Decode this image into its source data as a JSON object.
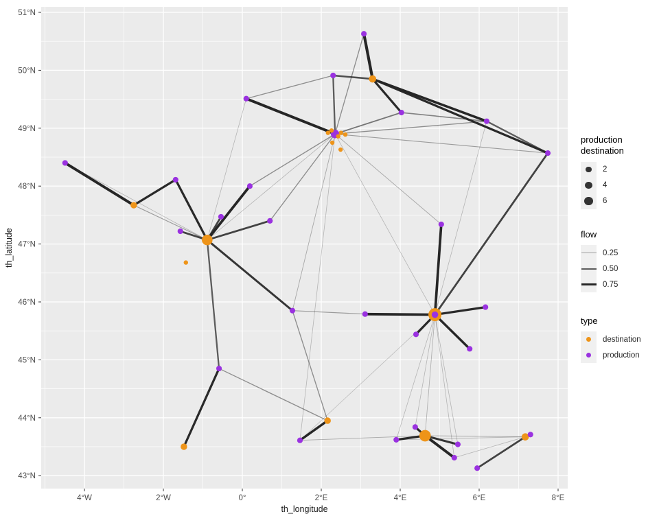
{
  "figure": {
    "x_axis": {
      "title": "th_longitude",
      "ticks": [
        {
          "label": "4°W",
          "lon": -4
        },
        {
          "label": "2°W",
          "lon": -2
        },
        {
          "label": "0°",
          "lon": 0
        },
        {
          "label": "2°E",
          "lon": 2
        },
        {
          "label": "4°E",
          "lon": 4
        },
        {
          "label": "6°E",
          "lon": 6
        },
        {
          "label": "8°E",
          "lon": 8
        }
      ]
    },
    "y_axis": {
      "title": "th_latitude",
      "ticks": [
        {
          "label": "51°N",
          "lat": 51
        },
        {
          "label": "50°N",
          "lat": 50
        },
        {
          "label": "49°N",
          "lat": 49
        },
        {
          "label": "48°N",
          "lat": 48
        },
        {
          "label": "47°N",
          "lat": 47
        },
        {
          "label": "46°N",
          "lat": 46
        },
        {
          "label": "45°N",
          "lat": 45
        },
        {
          "label": "44°N",
          "lat": 44
        },
        {
          "label": "43°N",
          "lat": 43
        }
      ]
    },
    "legend": {
      "size": {
        "title": "production\ndestination",
        "entries": [
          {
            "label": "2",
            "value": 2
          },
          {
            "label": "4",
            "value": 4
          },
          {
            "label": "6",
            "value": 6
          }
        ]
      },
      "flow": {
        "title": "flow",
        "entries": [
          {
            "label": "0.25",
            "value": 0.25
          },
          {
            "label": "0.50",
            "value": 0.5
          },
          {
            "label": "0.75",
            "value": 0.75
          }
        ]
      },
      "type": {
        "title": "type",
        "entries": [
          {
            "label": "destination",
            "color": "#EE9419"
          },
          {
            "label": "production",
            "color": "#9A32E0"
          }
        ]
      }
    },
    "colors": {
      "panel_bg": "#EBEBEB",
      "grid": "#FFFFFF",
      "edge": "#262626",
      "destination": "#EE9419",
      "production": "#9A32E0",
      "axis_text": "#4D4D4D",
      "legend_key_bg": "#F0F0F0",
      "legend_glyph": "#333333"
    }
  },
  "chart_data": {
    "type": "scatter",
    "subtype": "geographic-flow-network",
    "title": "",
    "xlabel": "th_longitude",
    "ylabel": "th_latitude",
    "xlim": [
      -5.1,
      8.25
    ],
    "ylim": [
      42.78,
      51.1
    ],
    "x_ticks": [
      -4,
      -2,
      0,
      2,
      4,
      6,
      8
    ],
    "y_ticks": [
      43,
      44,
      45,
      46,
      47,
      48,
      49,
      50,
      51
    ],
    "grid": true,
    "legend_position": "right",
    "encodings": {
      "point_size": "production destination",
      "point_color": "type",
      "line_width": "flow",
      "line_alpha": "flow"
    },
    "nodes": [
      {
        "id": "d1",
        "lon": -2.75,
        "lat": 47.67,
        "type": "destination",
        "size": 3
      },
      {
        "id": "d2",
        "lon": -0.89,
        "lat": 47.07,
        "type": "destination",
        "size": 10
      },
      {
        "id": "d3",
        "lon": 3.3,
        "lat": 49.85,
        "type": "destination",
        "size": 4
      },
      {
        "id": "d4",
        "lon": 4.88,
        "lat": 45.78,
        "type": "destination",
        "size": 16
      },
      {
        "id": "d5",
        "lon": -1.48,
        "lat": 43.5,
        "type": "destination",
        "size": 3
      },
      {
        "id": "d6",
        "lon": 2.16,
        "lat": 43.95,
        "type": "destination",
        "size": 3
      },
      {
        "id": "d7",
        "lon": 4.63,
        "lat": 43.69,
        "type": "destination",
        "size": 12
      },
      {
        "id": "d8",
        "lon": 7.17,
        "lat": 43.67,
        "type": "destination",
        "size": 4
      },
      {
        "id": "d9",
        "lon": -1.43,
        "lat": 46.68,
        "type": "destination",
        "size": 1
      },
      {
        "id": "d10",
        "lon": 2.17,
        "lat": 48.92,
        "type": "destination",
        "size": 1
      },
      {
        "id": "d11",
        "lon": 2.26,
        "lat": 48.96,
        "type": "destination",
        "size": 1
      },
      {
        "id": "d12",
        "lon": 2.5,
        "lat": 48.92,
        "type": "destination",
        "size": 1
      },
      {
        "id": "d13",
        "lon": 2.61,
        "lat": 48.89,
        "type": "destination",
        "size": 1
      },
      {
        "id": "d14",
        "lon": 2.43,
        "lat": 48.86,
        "type": "destination",
        "size": 1
      },
      {
        "id": "d15",
        "lon": 2.28,
        "lat": 48.75,
        "type": "destination",
        "size": 1
      },
      {
        "id": "d16",
        "lon": 2.49,
        "lat": 48.63,
        "type": "destination",
        "size": 1
      },
      {
        "id": "p1",
        "lon": -4.49,
        "lat": 48.4,
        "type": "production",
        "size": 2
      },
      {
        "id": "p2",
        "lon": 0.1,
        "lat": 49.51,
        "type": "production",
        "size": 2
      },
      {
        "id": "p3",
        "lon": 2.3,
        "lat": 49.91,
        "type": "production",
        "size": 2
      },
      {
        "id": "p4",
        "lon": 3.08,
        "lat": 50.63,
        "type": "production",
        "size": 2
      },
      {
        "id": "p5",
        "lon": 4.03,
        "lat": 49.27,
        "type": "production",
        "size": 2
      },
      {
        "id": "p6",
        "lon": 6.19,
        "lat": 49.12,
        "type": "production",
        "size": 2
      },
      {
        "id": "p7",
        "lon": 7.74,
        "lat": 48.57,
        "type": "production",
        "size": 2
      },
      {
        "id": "p8",
        "lon": 2.35,
        "lat": 48.9,
        "type": "production",
        "size": 6
      },
      {
        "id": "p9",
        "lon": -1.69,
        "lat": 48.11,
        "type": "production",
        "size": 2
      },
      {
        "id": "p10",
        "lon": 0.19,
        "lat": 48.0,
        "type": "production",
        "size": 2
      },
      {
        "id": "p11",
        "lon": -0.54,
        "lat": 47.47,
        "type": "production",
        "size": 2
      },
      {
        "id": "p12",
        "lon": -1.57,
        "lat": 47.22,
        "type": "production",
        "size": 2
      },
      {
        "id": "p13",
        "lon": 0.7,
        "lat": 47.4,
        "type": "production",
        "size": 2
      },
      {
        "id": "p14",
        "lon": 1.27,
        "lat": 45.85,
        "type": "production",
        "size": 2
      },
      {
        "id": "p15",
        "lon": 3.11,
        "lat": 45.79,
        "type": "production",
        "size": 2
      },
      {
        "id": "p16",
        "lon": 4.88,
        "lat": 45.78,
        "type": "production",
        "size": 3
      },
      {
        "id": "p17",
        "lon": 6.16,
        "lat": 45.91,
        "type": "production",
        "size": 2
      },
      {
        "id": "p18",
        "lon": 4.4,
        "lat": 45.44,
        "type": "production",
        "size": 2
      },
      {
        "id": "p19",
        "lon": 5.76,
        "lat": 45.19,
        "type": "production",
        "size": 2
      },
      {
        "id": "p20",
        "lon": 5.04,
        "lat": 47.34,
        "type": "production",
        "size": 2
      },
      {
        "id": "p21",
        "lon": -0.59,
        "lat": 44.85,
        "type": "production",
        "size": 2
      },
      {
        "id": "p22",
        "lon": 1.46,
        "lat": 43.61,
        "type": "production",
        "size": 2
      },
      {
        "id": "p23",
        "lon": 4.38,
        "lat": 43.84,
        "type": "production",
        "size": 2
      },
      {
        "id": "p24",
        "lon": 3.9,
        "lat": 43.62,
        "type": "production",
        "size": 2
      },
      {
        "id": "p25",
        "lon": 5.46,
        "lat": 43.54,
        "type": "production",
        "size": 2
      },
      {
        "id": "p26",
        "lon": 5.37,
        "lat": 43.31,
        "type": "production",
        "size": 2
      },
      {
        "id": "p27",
        "lon": 5.95,
        "lat": 43.13,
        "type": "production",
        "size": 2
      },
      {
        "id": "p28",
        "lon": 7.3,
        "lat": 43.71,
        "type": "production",
        "size": 2
      }
    ],
    "edges": [
      {
        "from": "p1",
        "to": "d1",
        "flow": 0.85
      },
      {
        "from": "p1",
        "to": "d2",
        "flow": 0.15
      },
      {
        "from": "p9",
        "to": "d1",
        "flow": 0.7
      },
      {
        "from": "p9",
        "to": "d2",
        "flow": 0.7
      },
      {
        "from": "d1",
        "to": "d2",
        "flow": 0.25
      },
      {
        "from": "p10",
        "to": "d2",
        "flow": 0.8
      },
      {
        "from": "p11",
        "to": "d2",
        "flow": 0.6
      },
      {
        "from": "p12",
        "to": "d2",
        "flow": 0.6
      },
      {
        "from": "p13",
        "to": "d2",
        "flow": 0.6
      },
      {
        "from": "d2",
        "to": "p14",
        "flow": 0.65
      },
      {
        "from": "d2",
        "to": "p21",
        "flow": 0.5
      },
      {
        "from": "d2",
        "to": "p8",
        "flow": 0.15
      },
      {
        "from": "p2",
        "to": "d2",
        "flow": 0.15
      },
      {
        "from": "p2",
        "to": "p8",
        "flow": 0.85
      },
      {
        "from": "p2",
        "to": "p3",
        "flow": 0.3
      },
      {
        "from": "p3",
        "to": "d3",
        "flow": 0.55
      },
      {
        "from": "p3",
        "to": "p8",
        "flow": 0.5
      },
      {
        "from": "p4",
        "to": "d3",
        "flow": 0.9
      },
      {
        "from": "p4",
        "to": "p8",
        "flow": 0.3
      },
      {
        "from": "d3",
        "to": "p5",
        "flow": 0.7
      },
      {
        "from": "d3",
        "to": "p6",
        "flow": 0.75
      },
      {
        "from": "d3",
        "to": "p7",
        "flow": 0.7
      },
      {
        "from": "p6",
        "to": "p7",
        "flow": 0.5
      },
      {
        "from": "p5",
        "to": "p6",
        "flow": 0.35
      },
      {
        "from": "p8",
        "to": "p5",
        "flow": 0.4
      },
      {
        "from": "p8",
        "to": "p6",
        "flow": 0.3
      },
      {
        "from": "p8",
        "to": "p7",
        "flow": 0.25
      },
      {
        "from": "p8",
        "to": "p20",
        "flow": 0.2
      },
      {
        "from": "p8",
        "to": "d4",
        "flow": 0.15
      },
      {
        "from": "p8",
        "to": "p13",
        "flow": 0.3
      },
      {
        "from": "p8",
        "to": "p10",
        "flow": 0.3
      },
      {
        "from": "p8",
        "to": "p14",
        "flow": 0.2
      },
      {
        "from": "p8",
        "to": "p22",
        "flow": 0.15
      },
      {
        "from": "p6",
        "to": "d4",
        "flow": 0.15
      },
      {
        "from": "p7",
        "to": "d4",
        "flow": 0.6
      },
      {
        "from": "p20",
        "to": "d4",
        "flow": 0.8
      },
      {
        "from": "p15",
        "to": "d4",
        "flow": 0.8
      },
      {
        "from": "p14",
        "to": "p15",
        "flow": 0.25
      },
      {
        "from": "d4",
        "to": "p17",
        "flow": 0.7
      },
      {
        "from": "d4",
        "to": "p18",
        "flow": 0.7
      },
      {
        "from": "d4",
        "to": "p19",
        "flow": 0.75
      },
      {
        "from": "d4",
        "to": "p23",
        "flow": 0.15
      },
      {
        "from": "d4",
        "to": "d7",
        "flow": 0.18
      },
      {
        "from": "d4",
        "to": "p24",
        "flow": 0.15
      },
      {
        "from": "d4",
        "to": "p26",
        "flow": 0.15
      },
      {
        "from": "d4",
        "to": "p25",
        "flow": 0.15
      },
      {
        "from": "d4",
        "to": "p22",
        "flow": 0.12
      },
      {
        "from": "p21",
        "to": "d5",
        "flow": 0.7
      },
      {
        "from": "p21",
        "to": "d6",
        "flow": 0.3
      },
      {
        "from": "p14",
        "to": "d6",
        "flow": 0.3
      },
      {
        "from": "p22",
        "to": "d6",
        "flow": 0.75
      },
      {
        "from": "p22",
        "to": "d7",
        "flow": 0.2
      },
      {
        "from": "p23",
        "to": "d7",
        "flow": 0.7
      },
      {
        "from": "p24",
        "to": "d7",
        "flow": 0.7
      },
      {
        "from": "d7",
        "to": "p25",
        "flow": 0.65
      },
      {
        "from": "d7",
        "to": "p26",
        "flow": 0.85
      },
      {
        "from": "p27",
        "to": "d8",
        "flow": 0.6
      },
      {
        "from": "d7",
        "to": "d8",
        "flow": 0.2
      },
      {
        "from": "p24",
        "to": "d8",
        "flow": 0.15
      },
      {
        "from": "p26",
        "to": "d8",
        "flow": 0.15
      }
    ]
  }
}
